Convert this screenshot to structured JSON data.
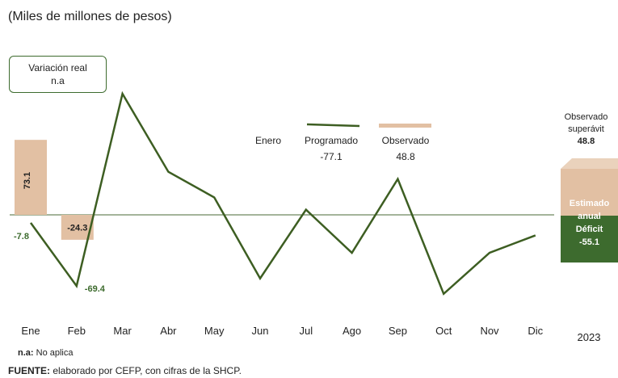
{
  "subtitle": "(Miles de millones de pesos)",
  "variation_box": {
    "line1": "Variación real",
    "line2": "n.a"
  },
  "legend": {
    "period": "Enero",
    "programado": {
      "name": "Programado",
      "value": "-77.1",
      "color": "#3d5e22"
    },
    "observado": {
      "name": "Observado",
      "value": "48.8",
      "color": "#e2c0a3"
    }
  },
  "annual": {
    "year": "2023",
    "observed_label_1": "Observado",
    "observed_label_2": "superávit",
    "observed_value": "48.8",
    "estimated_1": "Estimado",
    "estimated_2": "anual",
    "estimated_3": "Déficit",
    "estimated_value": "-55.1",
    "surplus_color": "#e2c0a3",
    "deficit_color": "#3d6b2e"
  },
  "chart_data": {
    "type": "line",
    "categories": [
      "Ene",
      "Feb",
      "Mar",
      "Abr",
      "May",
      "Jun",
      "Jul",
      "Ago",
      "Sep",
      "Oct",
      "Nov",
      "Dic"
    ],
    "series": [
      {
        "name": "Programado",
        "type": "line",
        "color": "#3d5e22",
        "values": [
          -7.8,
          -69.4,
          118,
          42,
          17,
          -62,
          5,
          -37,
          35,
          -77,
          -37,
          -20
        ]
      },
      {
        "name": "Observado",
        "type": "bar",
        "color": "#e2c0a3",
        "values": [
          73.1,
          -24.3,
          null,
          null,
          null,
          null,
          null,
          null,
          null,
          null,
          null,
          null
        ]
      }
    ],
    "data_labels": {
      "ene_obs": "73.1",
      "ene_prog": "-7.8",
      "feb_obs": "-24.3",
      "feb_prog": "-69.4"
    },
    "ylim": [
      -80,
      125
    ]
  },
  "footer": {
    "note_key": "n.a:",
    "note_text": " No aplica",
    "source_key": "FUENTE:",
    "source_text": " elaborado por CEFP, con cifras de la SHCP."
  }
}
